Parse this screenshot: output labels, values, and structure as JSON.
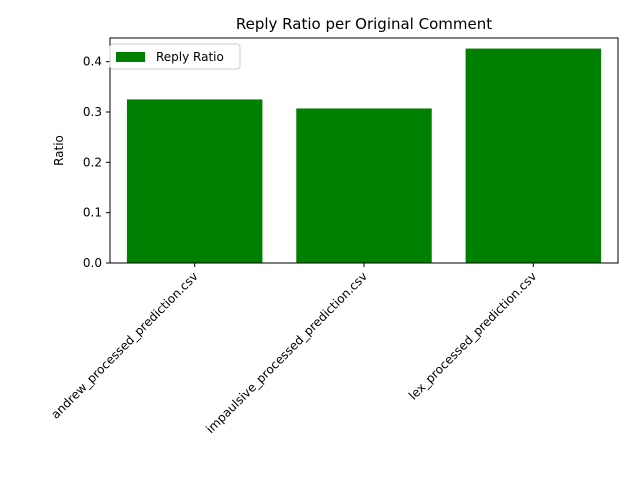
{
  "chart_data": {
    "type": "bar",
    "title": "Reply Ratio per Original Comment",
    "xlabel": "",
    "ylabel": "Ratio",
    "categories": [
      "andrew_processed_prediction.csv",
      "impaulsive_processed_prediction.csv",
      "lex_processed_prediction.csv"
    ],
    "series": [
      {
        "name": "Reply Ratio",
        "values": [
          0.325,
          0.307,
          0.426
        ],
        "color": "#008000"
      }
    ],
    "ylim": [
      0,
      0.447
    ],
    "yticks": [
      "0.0",
      "0.1",
      "0.2",
      "0.3",
      "0.4"
    ],
    "grid": false,
    "legend": {
      "position": "top-left"
    }
  }
}
